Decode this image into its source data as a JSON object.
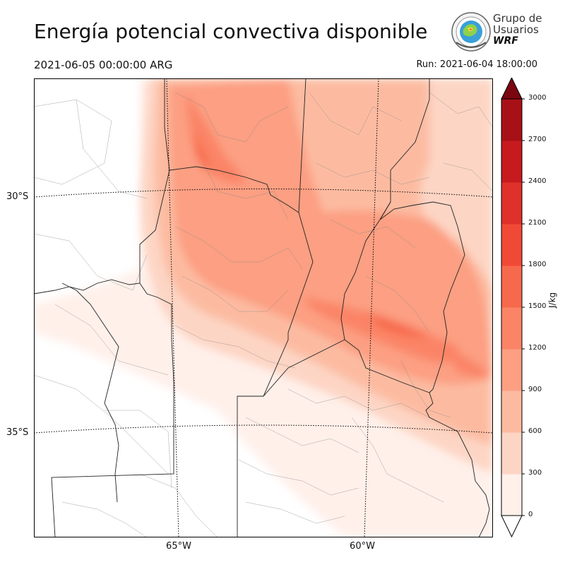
{
  "title": "Energía potencial convectiva disponible",
  "valid_time": "2021-06-05 00:00:00 ARG",
  "run_time": "Run: 2021-06-04 18:00:00",
  "logo": {
    "line1": "Grupo de",
    "line2": "Usuarios",
    "line3": "WRF"
  },
  "map": {
    "lat_labels": [
      "30°S",
      "35°S"
    ],
    "lon_labels": [
      "65°W",
      "60°W"
    ]
  },
  "colorbar": {
    "unit": "J/kg",
    "ticks": [
      "0",
      "300",
      "600",
      "900",
      "1200",
      "1500",
      "1800",
      "2100",
      "2400",
      "2700",
      "3000"
    ],
    "colors": [
      "#fff0ea",
      "#fdd5c4",
      "#fcbba1",
      "#fc9f82",
      "#fb8466",
      "#f7694c",
      "#f04936",
      "#e0302a",
      "#c61a1e",
      "#a81017",
      "#7a0710"
    ],
    "extend": "both"
  }
}
